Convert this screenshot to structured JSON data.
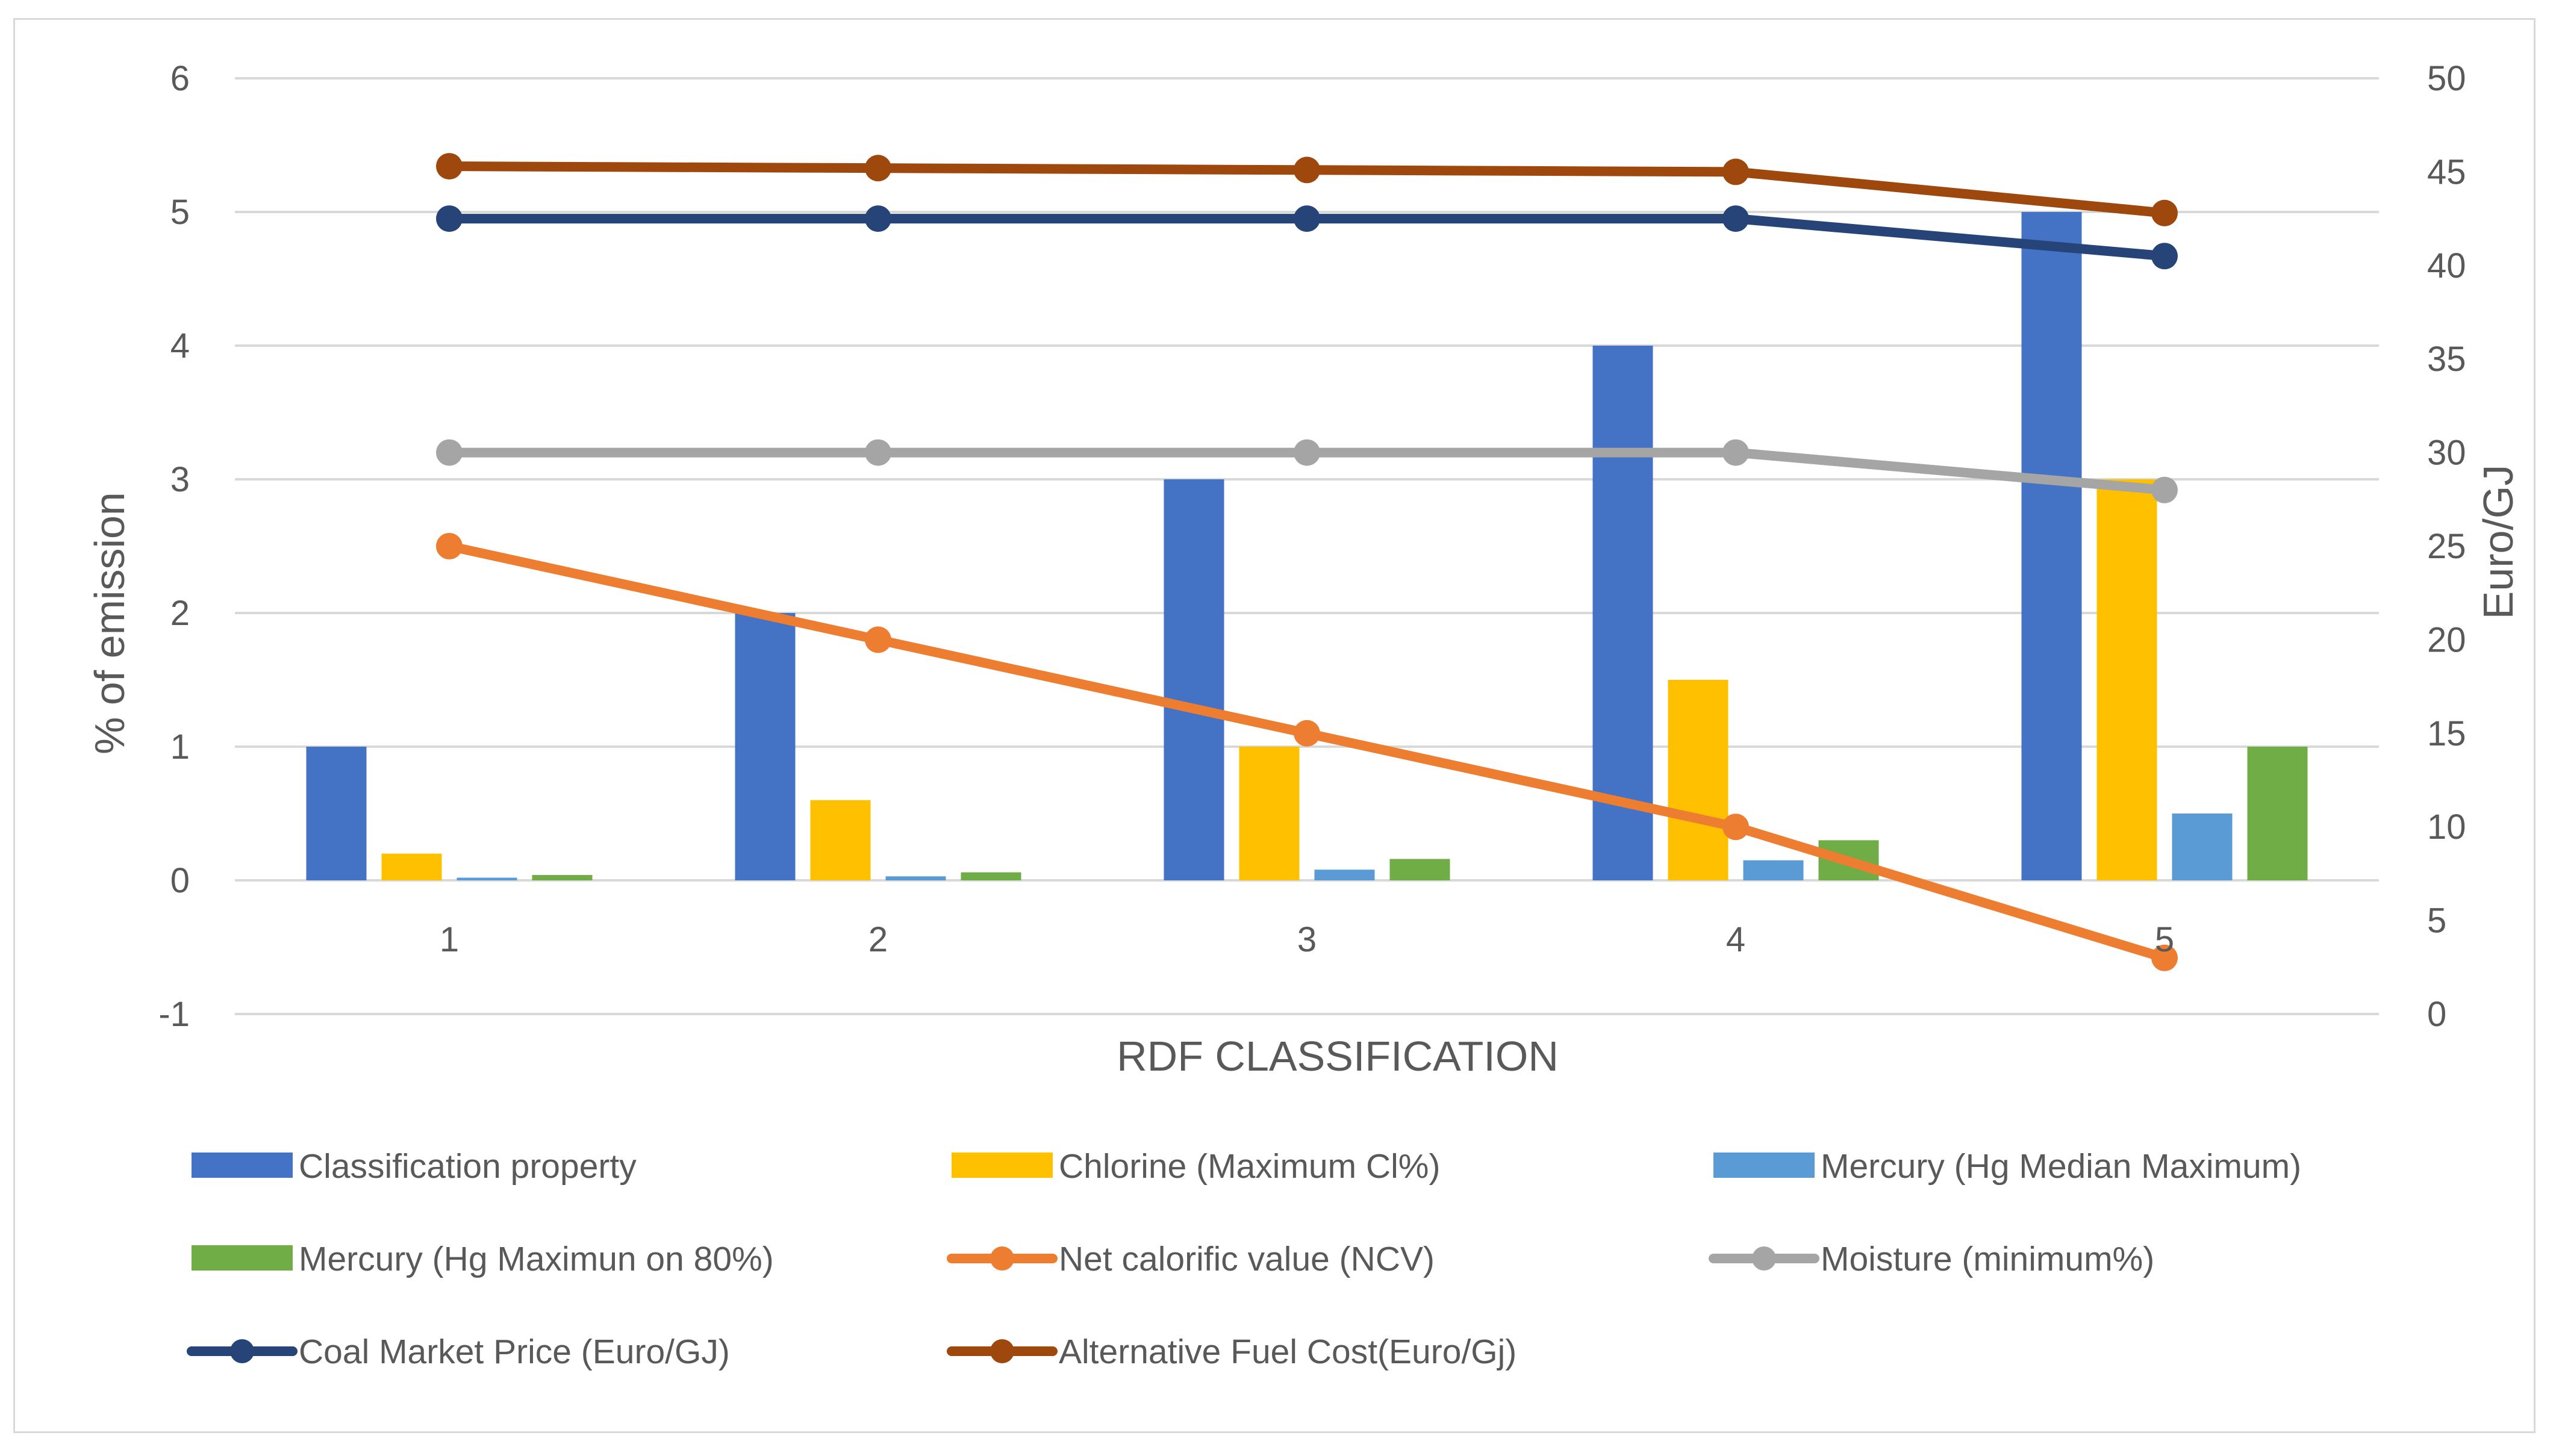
{
  "chart_data": {
    "type": "bar",
    "title": "",
    "xlabel": "RDF CLASSIFICATION",
    "ylabel": "% of emission",
    "y2label": "Euro/GJ",
    "categories": [
      "1",
      "2",
      "3",
      "4",
      "5"
    ],
    "ylim": [
      -1,
      6
    ],
    "y2lim": [
      0,
      50
    ],
    "y_ticks": [
      "-1",
      "0",
      "1",
      "2",
      "3",
      "4",
      "5",
      "6"
    ],
    "y2_ticks": [
      "0",
      "5",
      "10",
      "15",
      "20",
      "25",
      "30",
      "35",
      "40",
      "45",
      "50"
    ],
    "grid": true,
    "legend_position": "bottom",
    "bar_series": [
      {
        "name": "Classification property",
        "color": "#4472C4",
        "values": [
          1,
          2,
          3,
          4,
          5
        ]
      },
      {
        "name": "Chlorine (Maximum Cl%)",
        "color": "#FFC000",
        "values": [
          0.2,
          0.6,
          1.0,
          1.5,
          3.0
        ]
      },
      {
        "name": "Mercury (Hg Median Maximum)",
        "color": "#5B9BD5",
        "values": [
          0.02,
          0.03,
          0.08,
          0.15,
          0.5
        ]
      },
      {
        "name": "Mercury (Hg Maximun on 80%)",
        "color": "#70AD47",
        "values": [
          0.04,
          0.06,
          0.16,
          0.3,
          1.0
        ]
      }
    ],
    "line_series": [
      {
        "name": "Net calorific value (NCV)",
        "color": "#ED7D31",
        "axis": "secondary",
        "values": [
          25,
          20,
          15,
          10,
          3
        ]
      },
      {
        "name": "Moisture (minimum%)",
        "color": "#A5A5A5",
        "axis": "secondary",
        "values": [
          30,
          30,
          30,
          30,
          28
        ]
      },
      {
        "name": "Coal Market Price (Euro/GJ)",
        "color": "#264478",
        "axis": "secondary",
        "values": [
          42.5,
          42.5,
          42.5,
          42.5,
          40.5
        ]
      },
      {
        "name": "Alternative Fuel Cost(Euro/Gj)",
        "color": "#9E480E",
        "axis": "secondary",
        "values": [
          45.3,
          45.2,
          45.1,
          45.0,
          42.8
        ]
      }
    ],
    "legend": [
      "Classification property",
      "Chlorine (Maximum Cl%)",
      "Mercury (Hg Median Maximum)",
      "Mercury (Hg Maximun on 80%)",
      "Net calorific value (NCV)",
      "Moisture (minimum%)",
      "Coal Market Price (Euro/GJ)",
      "Alternative Fuel Cost(Euro/Gj)"
    ]
  }
}
